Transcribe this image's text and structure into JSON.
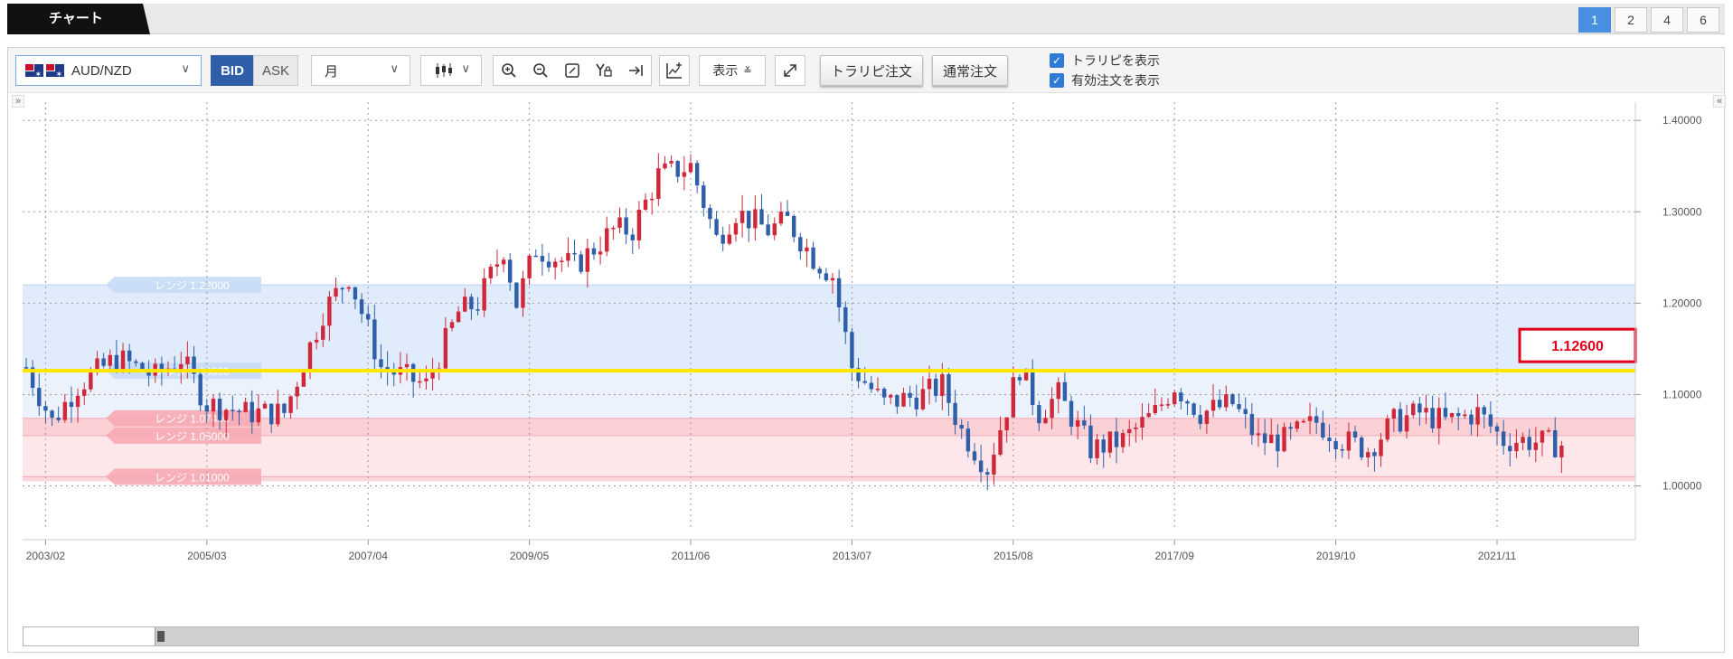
{
  "tabs": {
    "chart_label": "チャート"
  },
  "page_buttons": [
    "1",
    "2",
    "4",
    "6"
  ],
  "active_page": "1",
  "toolbar": {
    "symbol": "AUD/NZD",
    "bid_label": "BID",
    "ask_label": "ASK",
    "period": "月",
    "display_label": "表示",
    "trap_order_label": "トラリピ注文",
    "normal_order_label": "通常注文",
    "show_trap_label": "トラリピを表示",
    "show_active_orders_label": "有効注文を表示"
  },
  "chart_data": {
    "type": "candlestick",
    "symbol": "AUD/NZD",
    "timeframe": "monthly",
    "x_tick_labels": [
      "2003/02",
      "2005/03",
      "2007/04",
      "2009/05",
      "2011/06",
      "2013/07",
      "2015/08",
      "2017/09",
      "2019/10",
      "2021/11"
    ],
    "y_tick_labels": [
      "1.40000",
      "1.30000",
      "1.20000",
      "1.10000",
      "1.00000"
    ],
    "ylim": [
      0.955,
      1.42
    ],
    "x_start": "2002-11",
    "x_end": "2022-09",
    "grid": true,
    "current_price": 1.126,
    "current_price_label": "1.12600",
    "up_color": "#d0283a",
    "down_color": "#2f5fa8",
    "price_line_color": "#ffe600",
    "ranges": [
      {
        "label": "レンジ 1.22000",
        "top": 1.22,
        "bottom": 1.126,
        "color": "#dbe9fb"
      },
      {
        "label": "レンジ 1.10000",
        "top": 1.126,
        "bottom": 1.073,
        "color": "#e8f0fb"
      },
      {
        "label": "レンジ 1.07400",
        "top": 1.074,
        "bottom": 1.055,
        "color": "#fbc9cf"
      },
      {
        "label": "レンジ 1.05000",
        "top": 1.055,
        "bottom": 1.01,
        "color": "#fde3e6"
      },
      {
        "label": "レンジ 1.01000",
        "top": 1.01,
        "bottom": 1.005,
        "color": "#fbd0d6"
      }
    ],
    "keypoints": [
      [
        "2002-11",
        1.13
      ],
      [
        "2003-03",
        1.07
      ],
      [
        "2003-07",
        1.11
      ],
      [
        "2004-01",
        1.14
      ],
      [
        "2004-07",
        1.12
      ],
      [
        "2004-11",
        1.14
      ],
      [
        "2005-03",
        1.09
      ],
      [
        "2005-09",
        1.08
      ],
      [
        "2006-03",
        1.08
      ],
      [
        "2006-09",
        1.19
      ],
      [
        "2007-01",
        1.23
      ],
      [
        "2007-06",
        1.13
      ],
      [
        "2008-01",
        1.11
      ],
      [
        "2008-06",
        1.19
      ],
      [
        "2008-09",
        1.2
      ],
      [
        "2009-01",
        1.26
      ],
      [
        "2009-03",
        1.2
      ],
      [
        "2009-06",
        1.26
      ],
      [
        "2009-12",
        1.24
      ],
      [
        "2010-06",
        1.28
      ],
      [
        "2010-09",
        1.28
      ],
      [
        "2011-01",
        1.34
      ],
      [
        "2011-06",
        1.35
      ],
      [
        "2011-10",
        1.27
      ],
      [
        "2012-01",
        1.3
      ],
      [
        "2012-06",
        1.28
      ],
      [
        "2012-09",
        1.29
      ],
      [
        "2013-01",
        1.25
      ],
      [
        "2013-04",
        1.23
      ],
      [
        "2013-07",
        1.13
      ],
      [
        "2013-12",
        1.09
      ],
      [
        "2014-06",
        1.1
      ],
      [
        "2014-09",
        1.11
      ],
      [
        "2014-12",
        1.06
      ],
      [
        "2015-04",
        1.02
      ],
      [
        "2015-09",
        1.13
      ],
      [
        "2015-12",
        1.08
      ],
      [
        "2016-03",
        1.1
      ],
      [
        "2016-08",
        1.04
      ],
      [
        "2017-01",
        1.05
      ],
      [
        "2017-06",
        1.08
      ],
      [
        "2017-09",
        1.11
      ],
      [
        "2018-01",
        1.08
      ],
      [
        "2018-06",
        1.09
      ],
      [
        "2018-10",
        1.05
      ],
      [
        "2019-02",
        1.05
      ],
      [
        "2019-07",
        1.07
      ],
      [
        "2019-11",
        1.05
      ],
      [
        "2020-03",
        1.04
      ],
      [
        "2020-07",
        1.07
      ],
      [
        "2020-11",
        1.08
      ],
      [
        "2021-03",
        1.07
      ],
      [
        "2021-08",
        1.08
      ],
      [
        "2021-12",
        1.05
      ],
      [
        "2022-03",
        1.05
      ],
      [
        "2022-09",
        1.045
      ]
    ]
  }
}
